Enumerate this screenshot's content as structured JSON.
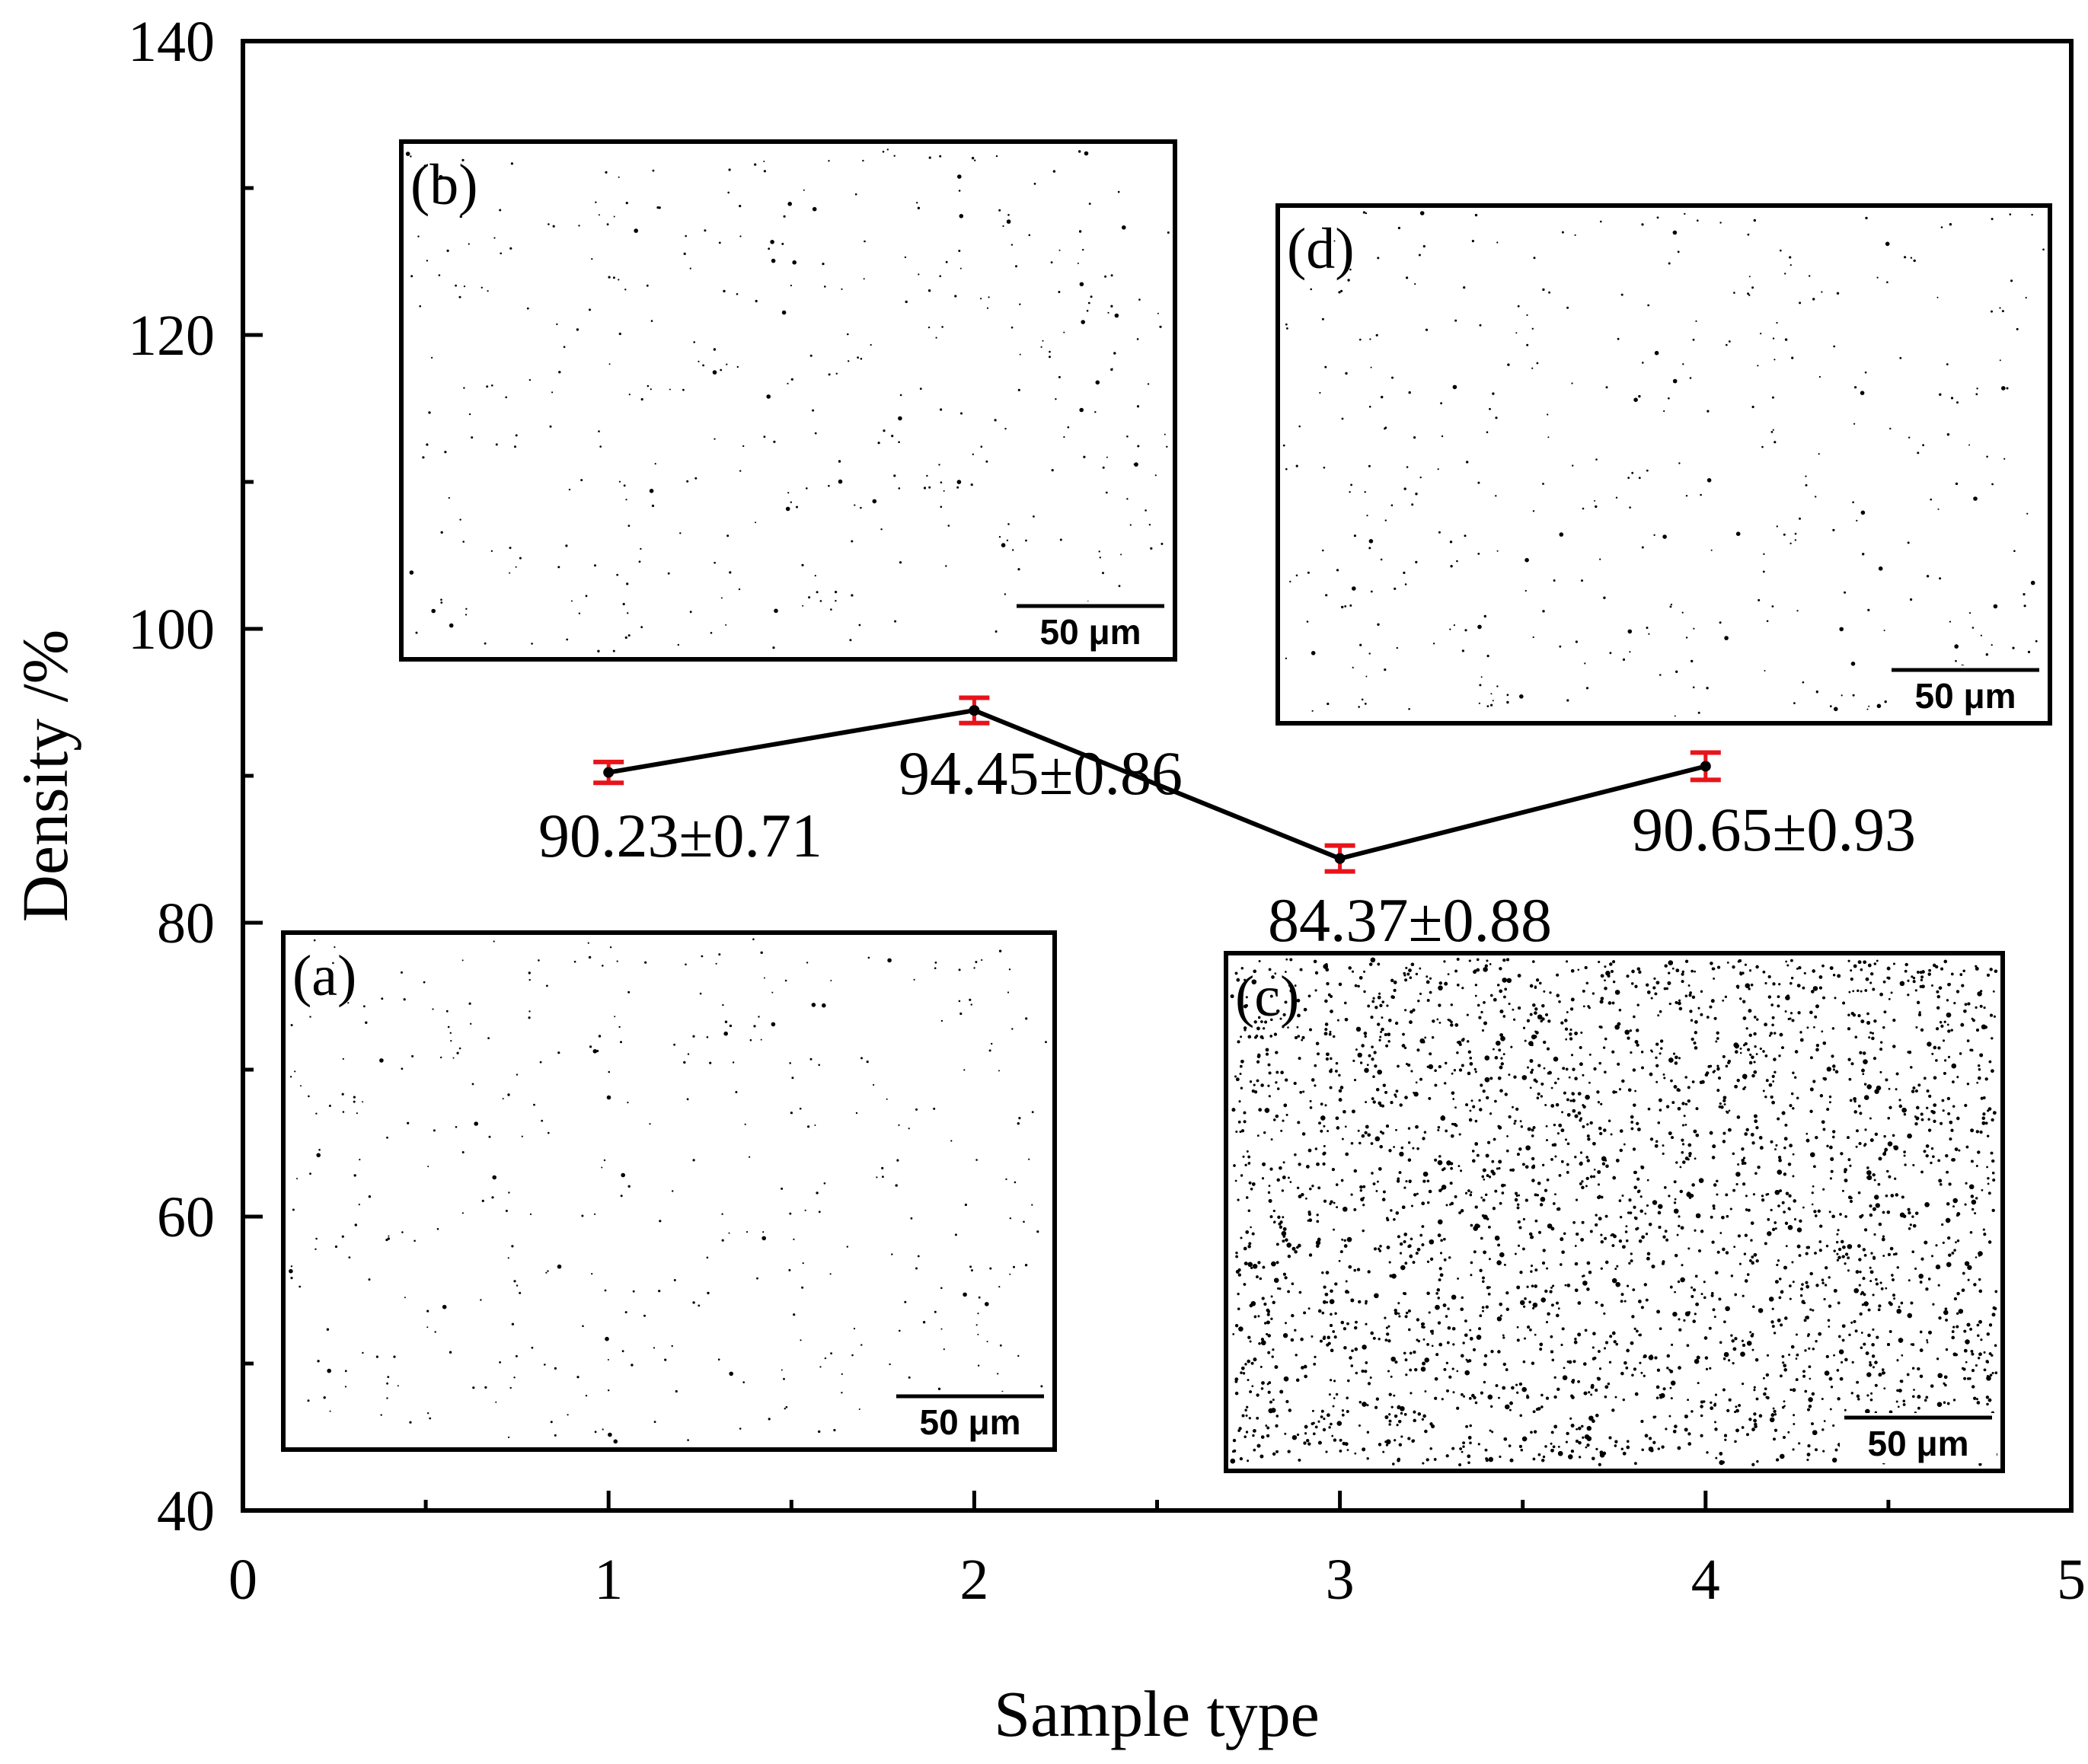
{
  "chart_data": {
    "type": "line",
    "xlabel": "Sample type",
    "ylabel": "Density /%",
    "xlim": [
      0,
      5
    ],
    "ylim": [
      40,
      140
    ],
    "xticks": [
      0,
      1,
      2,
      3,
      4,
      5
    ],
    "yticks": [
      40,
      60,
      80,
      100,
      120,
      140
    ],
    "x_minor_step": 0.5,
    "y_minor_step": 10,
    "grid": false,
    "legend": "none",
    "colors": {
      "line": "#000000",
      "error_bar": "#e8141b",
      "marker": "#000000"
    },
    "series": [
      {
        "x": [
          1,
          2,
          3,
          4
        ],
        "y": [
          90.23,
          94.45,
          84.37,
          90.65
        ],
        "error": [
          0.71,
          0.86,
          0.88,
          0.93
        ]
      }
    ],
    "annotations": [
      {
        "text": "90.23±0.71"
      },
      {
        "text": "94.45±0.86"
      },
      {
        "text": "84.37±0.88"
      },
      {
        "text": "90.65±0.93"
      }
    ],
    "insets": [
      {
        "label": "(b)",
        "scale": "50 μm",
        "density": "low"
      },
      {
        "label": "(d)",
        "scale": "50 μm",
        "density": "low"
      },
      {
        "label": "(a)",
        "scale": "50 μm",
        "density": "low"
      },
      {
        "label": "(c)",
        "scale": "50 μm",
        "density": "high"
      }
    ]
  }
}
